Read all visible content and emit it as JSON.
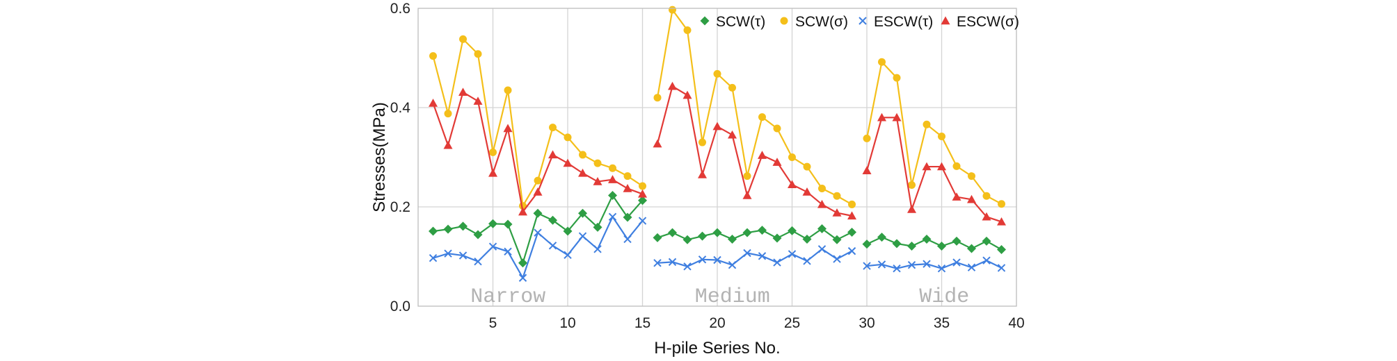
{
  "chart_data": {
    "type": "line",
    "xlabel": "H-pile Series No.",
    "ylabel": "Stresses(MPa)",
    "xlim": [
      0,
      40
    ],
    "ylim": [
      0,
      0.6
    ],
    "xticks": [
      5,
      10,
      15,
      20,
      25,
      30,
      35,
      40
    ],
    "yticks": [
      0.0,
      0.2,
      0.4,
      0.6
    ],
    "ytick_labels": [
      "0.0",
      "0.2",
      "0.4",
      "0.6"
    ],
    "grid": true,
    "legend": "top-right",
    "group_labels": [
      {
        "text": "Narrow",
        "x": 3.5
      },
      {
        "text": "Medium",
        "x": 18.5
      },
      {
        "text": "Wide",
        "x": 33.5
      }
    ],
    "segments": [
      [
        1,
        15
      ],
      [
        16,
        29
      ],
      [
        30,
        39
      ]
    ],
    "series": [
      {
        "name": "SCW(τ)",
        "color": "#2e9e44",
        "marker": "diamond",
        "x": [
          1,
          2,
          3,
          4,
          5,
          6,
          7,
          8,
          9,
          10,
          11,
          12,
          13,
          14,
          15,
          16,
          17,
          18,
          19,
          20,
          21,
          22,
          23,
          24,
          25,
          26,
          27,
          28,
          29,
          30,
          31,
          32,
          33,
          34,
          35,
          36,
          37,
          38,
          39
        ],
        "values": [
          0.151,
          0.155,
          0.161,
          0.144,
          0.166,
          0.165,
          0.087,
          0.187,
          0.173,
          0.151,
          0.187,
          0.159,
          0.223,
          0.179,
          0.213,
          0.138,
          0.148,
          0.134,
          0.141,
          0.148,
          0.135,
          0.148,
          0.153,
          0.137,
          0.152,
          0.135,
          0.156,
          0.134,
          0.149,
          0.125,
          0.139,
          0.126,
          0.121,
          0.135,
          0.121,
          0.131,
          0.116,
          0.131,
          0.114
        ]
      },
      {
        "name": "SCW(σ)",
        "color": "#f4bf1a",
        "marker": "circle",
        "x": [
          1,
          2,
          3,
          4,
          5,
          6,
          7,
          8,
          9,
          10,
          11,
          12,
          13,
          14,
          15,
          16,
          17,
          18,
          19,
          20,
          21,
          22,
          23,
          24,
          25,
          26,
          27,
          28,
          29,
          30,
          31,
          32,
          33,
          34,
          35,
          36,
          37,
          38,
          39
        ],
        "values": [
          0.504,
          0.388,
          0.538,
          0.508,
          0.31,
          0.435,
          0.202,
          0.253,
          0.36,
          0.34,
          0.305,
          0.288,
          0.278,
          0.262,
          0.242,
          0.42,
          0.597,
          0.556,
          0.33,
          0.468,
          0.44,
          0.262,
          0.381,
          0.358,
          0.3,
          0.281,
          0.237,
          0.222,
          0.205,
          0.338,
          0.492,
          0.46,
          0.244,
          0.366,
          0.342,
          0.282,
          0.262,
          0.222,
          0.206
        ]
      },
      {
        "name": "ESCW(τ)",
        "color": "#3f7fe0",
        "marker": "x",
        "x": [
          1,
          2,
          3,
          4,
          5,
          6,
          7,
          8,
          9,
          10,
          11,
          12,
          13,
          14,
          15,
          16,
          17,
          18,
          19,
          20,
          21,
          22,
          23,
          24,
          25,
          26,
          27,
          28,
          29,
          30,
          31,
          32,
          33,
          34,
          35,
          36,
          37,
          38,
          39
        ],
        "values": [
          0.097,
          0.106,
          0.102,
          0.09,
          0.12,
          0.11,
          0.057,
          0.148,
          0.122,
          0.103,
          0.141,
          0.115,
          0.18,
          0.135,
          0.172,
          0.087,
          0.089,
          0.08,
          0.094,
          0.093,
          0.083,
          0.107,
          0.101,
          0.088,
          0.105,
          0.091,
          0.115,
          0.095,
          0.111,
          0.081,
          0.084,
          0.076,
          0.083,
          0.085,
          0.076,
          0.088,
          0.078,
          0.092,
          0.077
        ]
      },
      {
        "name": "ESCW(σ)",
        "color": "#e23a36",
        "marker": "triangle",
        "x": [
          1,
          2,
          3,
          4,
          5,
          6,
          7,
          8,
          9,
          10,
          11,
          12,
          13,
          14,
          15,
          16,
          17,
          18,
          19,
          20,
          21,
          22,
          23,
          24,
          25,
          26,
          27,
          28,
          29,
          30,
          31,
          32,
          33,
          34,
          35,
          36,
          37,
          38,
          39
        ],
        "values": [
          0.409,
          0.324,
          0.431,
          0.413,
          0.268,
          0.358,
          0.19,
          0.23,
          0.305,
          0.288,
          0.268,
          0.251,
          0.255,
          0.237,
          0.226,
          0.327,
          0.443,
          0.425,
          0.265,
          0.362,
          0.345,
          0.223,
          0.304,
          0.29,
          0.245,
          0.23,
          0.205,
          0.188,
          0.182,
          0.273,
          0.38,
          0.38,
          0.195,
          0.281,
          0.281,
          0.22,
          0.215,
          0.18,
          0.17
        ]
      }
    ]
  }
}
